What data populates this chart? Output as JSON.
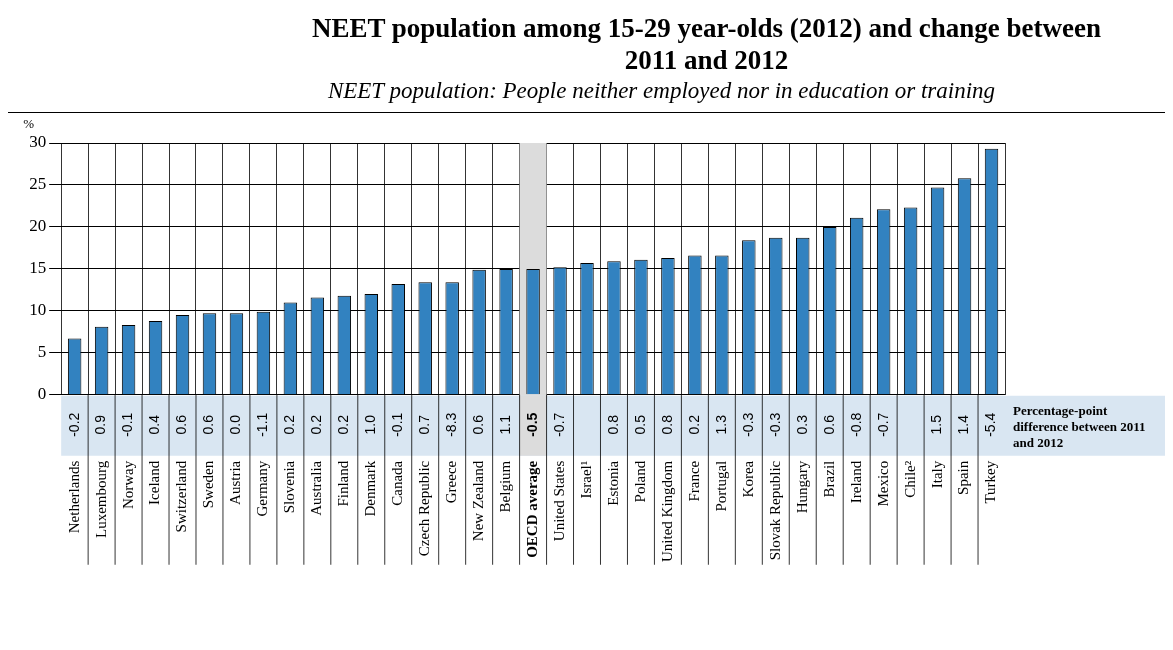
{
  "chart_data": {
    "type": "bar",
    "title": "NEET population among 15-29 year-olds (2012) and change between 2011 and 2012",
    "subtitle": "NEET population: People neither employed nor in education or training",
    "ylabel": "%",
    "categories": [
      "Netherlands",
      "Luxembourg",
      "Norway",
      "Iceland",
      "Switzerland",
      "Sweden",
      "Austria",
      "Germany",
      "Slovenia",
      "Australia",
      "Finland",
      "Denmark",
      "Canada",
      "Czech Republic",
      "Greece",
      "New Zealand",
      "Belgium",
      "OECD average",
      "United States",
      "Israel¹",
      "Estonia",
      "Poland",
      "United Kingdom",
      "France",
      "Portugal",
      "Korea",
      "Slovak Republic",
      "Hungary",
      "Brazil",
      "Ireland",
      "Mexico",
      "Chile²",
      "Italy",
      "Spain",
      "Turkey"
    ],
    "values": [
      6.7,
      8.1,
      8.3,
      8.8,
      9.5,
      9.7,
      9.7,
      9.9,
      11.0,
      11.6,
      11.8,
      12.0,
      13.2,
      13.4,
      13.4,
      14.9,
      15.0,
      15.0,
      15.2,
      15.7,
      15.9,
      16.1,
      16.3,
      16.6,
      16.6,
      18.4,
      18.7,
      18.7,
      20.0,
      21.1,
      22.1,
      22.3,
      24.7,
      25.8,
      29.3
    ],
    "color": "#3282c0",
    "ylim": [
      0,
      30
    ],
    "yticks": [
      0,
      5,
      10,
      15,
      20,
      25,
      30
    ],
    "grid": true,
    "legend": false,
    "annotations": [
      "Percentage-point difference between 2011 and 2012",
      {
        "text": "-0.2",
        "x": "Netherlands",
        "y": 0
      },
      {
        "text": "0.9",
        "x": "Luxembourg",
        "y": 0
      },
      {
        "text": "-0.1",
        "x": "Norway",
        "y": 0
      },
      {
        "text": "0.4",
        "x": "Iceland",
        "y": 0
      },
      {
        "text": "0.6",
        "x": "Switzerland",
        "y": 0
      },
      {
        "text": "0.6",
        "x": "Sweden",
        "y": 0
      },
      {
        "text": "0.0",
        "x": "Austria",
        "y": 0
      },
      {
        "text": "-1.1",
        "x": "Germany",
        "y": 0
      },
      {
        "text": "0.2",
        "x": "Slovenia",
        "y": 0
      },
      {
        "text": "0.2",
        "x": "Australia",
        "y": 0
      },
      {
        "text": "0.2",
        "x": "Finland",
        "y": 0
      },
      {
        "text": "1.0",
        "x": "Denmark",
        "y": 0
      },
      {
        "text": "-0.1",
        "x": "Canada",
        "y": 0
      },
      {
        "text": "0.7",
        "x": "Czech Republic",
        "y": 0
      },
      {
        "text": "-8.3",
        "x": "Greece",
        "y": 0
      },
      {
        "text": "0.6",
        "x": "New Zealand",
        "y": 0
      },
      {
        "text": "1.1",
        "x": "Belgium",
        "y": 0
      },
      {
        "text": "-0.5",
        "x": "OECD average",
        "y": 0
      },
      {
        "text": "-0.7",
        "x": "United States",
        "y": 0
      },
      {
        "text": "0.8",
        "x": "Estonia",
        "y": 0
      },
      {
        "text": "0.5",
        "x": "Poland",
        "y": 0
      },
      {
        "text": "0.8",
        "x": "United Kingdom",
        "y": 0
      },
      {
        "text": "0.2",
        "x": "France",
        "y": 0
      },
      {
        "text": "1.3",
        "x": "Portugal",
        "y": 0
      },
      {
        "text": "-0.3",
        "x": "Korea",
        "y": 0
      },
      {
        "text": "-0.3",
        "x": "Slovak Republic",
        "y": 0
      },
      {
        "text": "0.3",
        "x": "Hungary",
        "y": 0
      },
      {
        "text": "0.6",
        "x": "Brazil",
        "y": 0
      },
      {
        "text": "-0.8",
        "x": "Ireland",
        "y": 0
      },
      {
        "text": "-0.7",
        "x": "Mexico",
        "y": 0
      },
      {
        "text": "1.5",
        "x": "Italy",
        "y": 0
      },
      {
        "text": "1.4",
        "x": "Spain",
        "y": 0
      },
      {
        "text": "-5.4",
        "x": "Turkey",
        "y": 0
      }
    ],
    "bands": [
      {
        "axis": "x",
        "from": "OECD average",
        "to": "OECD average",
        "color": "#dcdcdc"
      }
    ]
  }
}
